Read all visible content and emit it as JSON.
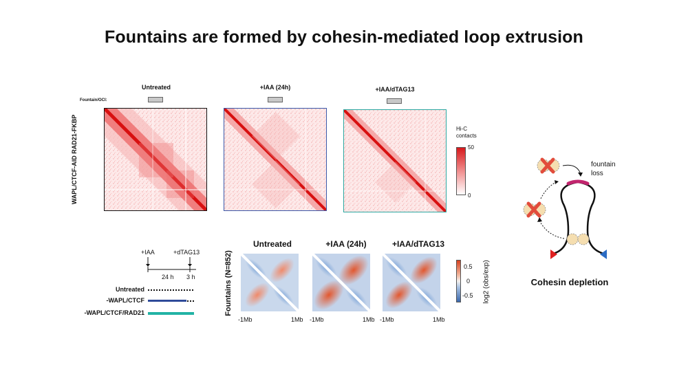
{
  "title": "Fountains are formed by cohesin-mediated loop extrusion",
  "hic_panel": {
    "fountain_label": "Fountain/OCI:",
    "row_label": "WAPL/CTCF-AID RAD21-FKBP",
    "conditions": [
      "Untreated",
      "+IAA (24h)",
      "+IAA/dTAG13"
    ],
    "border_colors": [
      "#111111",
      "#3a57a8",
      "#2aa7a0"
    ],
    "colorbar": {
      "label_line1": "Hi-C",
      "label_line2": "contacts",
      "max": "50",
      "min": "0",
      "color": "#d7191c"
    }
  },
  "timeline": {
    "iaa_label": "+IAA",
    "dtag_label": "+dTAG13",
    "t1_label": "24 h",
    "t2_label": "3 h",
    "rows": [
      {
        "label": "Untreated",
        "color": "#111111"
      },
      {
        "label": "-WAPL/CTCF",
        "color": "#2f4b9a"
      },
      {
        "label": "-WAPL/CTCF/RAD21",
        "color": "#22b3a5"
      }
    ]
  },
  "apa_panel": {
    "row_label": "Fountains (N=852)",
    "conditions": [
      "Untreated",
      "+IAA (24h)",
      "+IAA/dTAG13"
    ],
    "x_left": "-1Mb",
    "x_right": "1Mb",
    "colorbar": {
      "max": "0.5",
      "mid": "0",
      "min": "-0.5",
      "label": "log2 (obs/exp)"
    }
  },
  "diagram": {
    "loss_label_line1": "fountain",
    "loss_label_line2": "loss",
    "caption": "Cohesin depletion",
    "colors": {
      "cross": "#e24c3b",
      "cohesin": "#f5deb0",
      "loop_top": "#c2256e",
      "left_anchor": "#e02020",
      "right_anchor": "#2b6cc4"
    }
  }
}
